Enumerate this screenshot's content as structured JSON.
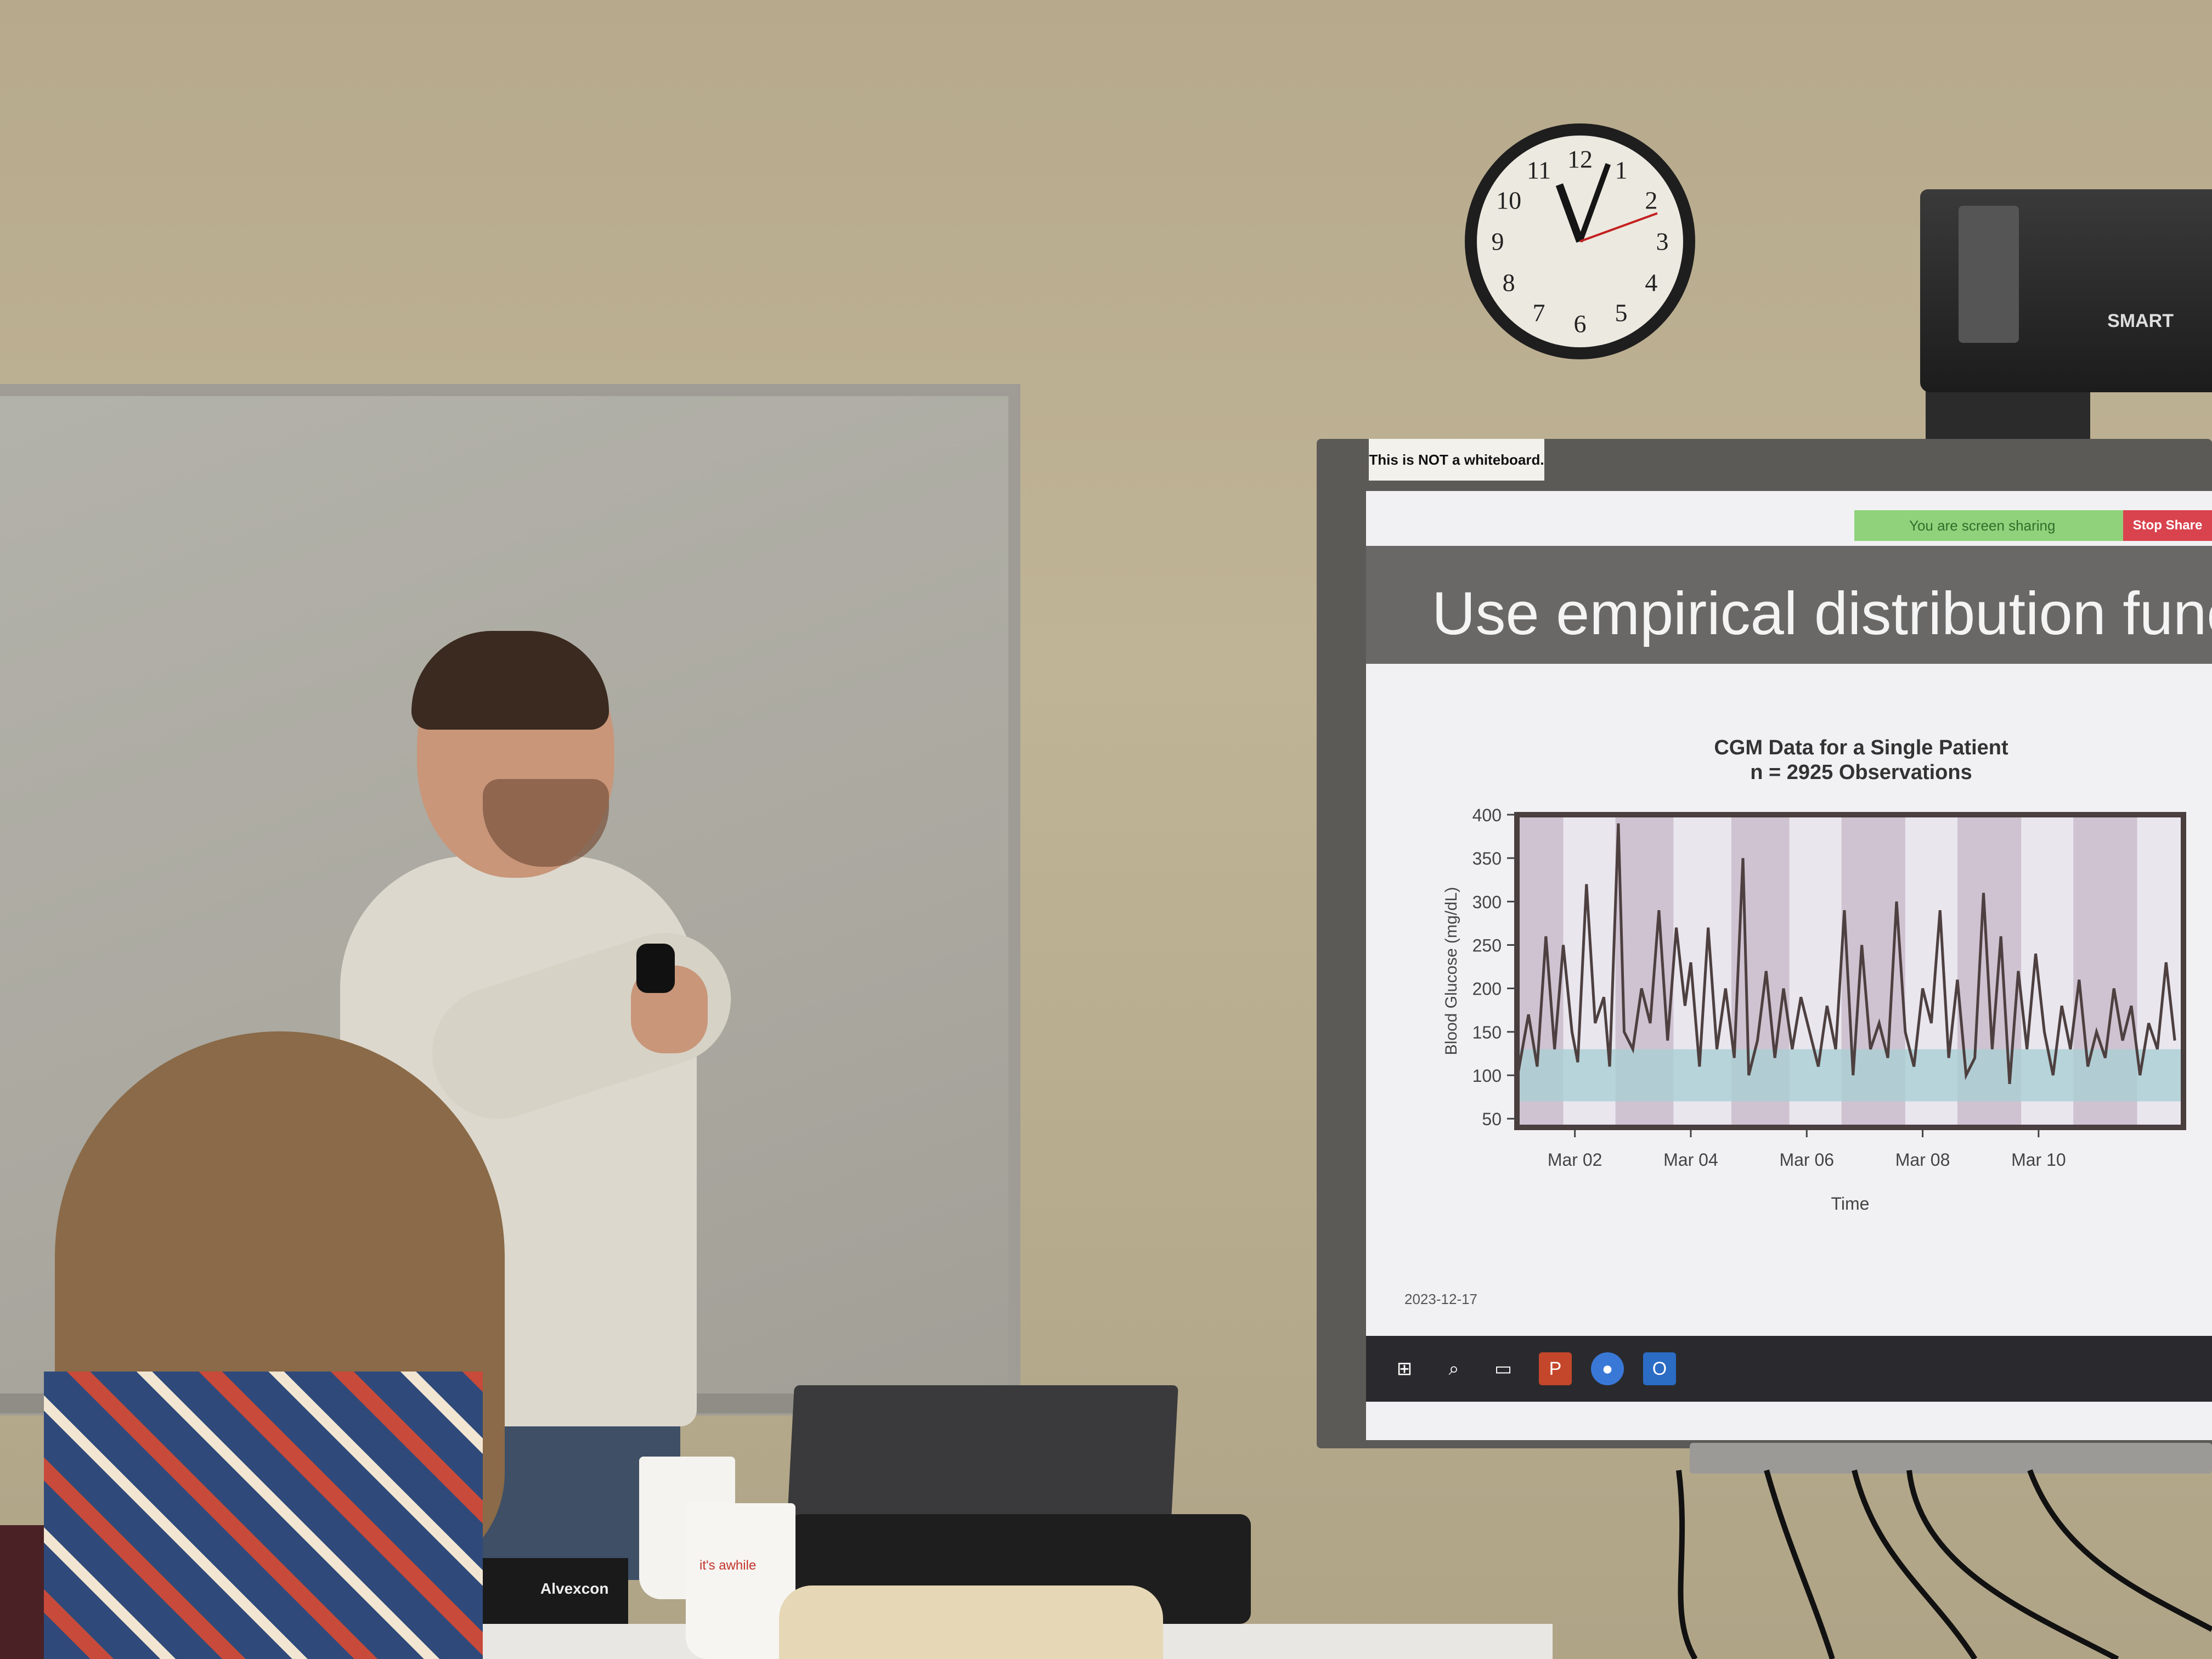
{
  "scene": {
    "description_free": true
  },
  "whiteboard_sticker": "This is NOT a whiteboard.",
  "clock_numbers": [
    "12",
    "1",
    "2",
    "3",
    "4",
    "5",
    "6",
    "7",
    "8",
    "9",
    "10",
    "11"
  ],
  "projector_brand": "SMART",
  "screen": {
    "zoom_bar_text": "You are screen sharing",
    "stop_share_label": "Stop Share",
    "slide_title": "Use empirical distribution funct",
    "slide_date": "2023-12-17",
    "taskbar_icons": [
      "windows-icon",
      "search-icon",
      "task-view-icon",
      "powerpoint-icon",
      "zoom-icon",
      "outlook-icon"
    ]
  },
  "desk_items": {
    "box_label": "Alvexcon",
    "cup_text": "it's awhile"
  },
  "chart_data": {
    "type": "line",
    "title": "CGM Data for a Single Patient",
    "subtitle": "n = 2925 Observations",
    "xlabel": "Time",
    "ylabel": "Blood Glucose (mg/dL)",
    "ylim": [
      40,
      400
    ],
    "yticks": [
      50,
      100,
      150,
      200,
      250,
      300,
      350,
      400
    ],
    "xticks": [
      "Mar 02",
      "Mar 04",
      "Mar 06",
      "Mar 08",
      "Mar 10"
    ],
    "x_day_range": [
      1,
      12.5
    ],
    "target_band": [
      70,
      130
    ],
    "night_bands_days": [
      [
        1.0,
        1.8
      ],
      [
        2.7,
        3.7
      ],
      [
        4.7,
        5.7
      ],
      [
        6.6,
        7.7
      ],
      [
        8.6,
        9.7
      ],
      [
        10.6,
        11.7
      ]
    ],
    "series": [
      {
        "x_days": [
          1.0,
          1.2,
          1.35,
          1.5,
          1.65,
          1.8,
          1.95,
          2.05,
          2.2,
          2.35,
          2.5,
          2.6,
          2.75,
          2.85,
          3.0,
          3.15,
          3.3,
          3.45,
          3.6,
          3.75,
          3.9,
          4.0,
          4.15,
          4.3,
          4.45,
          4.6,
          4.75,
          4.9,
          5.0,
          5.15,
          5.3,
          5.45,
          5.6,
          5.75,
          5.9,
          6.05,
          6.2,
          6.35,
          6.5,
          6.65,
          6.8,
          6.95,
          7.1,
          7.25,
          7.4,
          7.55,
          7.7,
          7.85,
          8.0,
          8.15,
          8.3,
          8.45,
          8.6,
          8.75,
          8.9,
          9.05,
          9.2,
          9.35,
          9.5,
          9.65,
          9.8,
          9.95,
          10.1,
          10.25,
          10.4,
          10.55,
          10.7,
          10.85,
          11.0,
          11.15,
          11.3,
          11.45,
          11.6,
          11.75,
          11.9,
          12.05,
          12.2,
          12.35
        ],
        "values": [
          95,
          170,
          110,
          260,
          130,
          250,
          150,
          115,
          320,
          160,
          190,
          110,
          390,
          150,
          130,
          200,
          160,
          290,
          140,
          270,
          180,
          230,
          110,
          270,
          130,
          200,
          120,
          350,
          100,
          140,
          220,
          120,
          200,
          130,
          190,
          150,
          110,
          180,
          130,
          290,
          100,
          250,
          130,
          160,
          120,
          300,
          150,
          110,
          200,
          160,
          290,
          120,
          210,
          100,
          120,
          310,
          130,
          260,
          90,
          220,
          130,
          240,
          150,
          100,
          180,
          130,
          210,
          110,
          150,
          120,
          200,
          140,
          180,
          100,
          160,
          130,
          230,
          140
        ]
      }
    ]
  }
}
